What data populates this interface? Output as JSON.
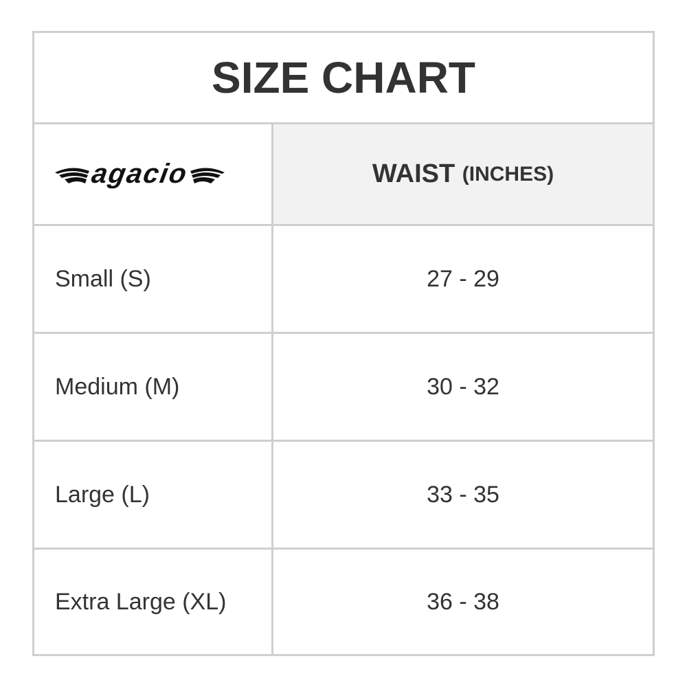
{
  "title": "SIZE CHART",
  "brand_logo": "agacio",
  "header": {
    "waist": "WAIST",
    "unit": "(INCHES)"
  },
  "rows": [
    {
      "size": "Small (S)",
      "waist": "27 - 29"
    },
    {
      "size": "Medium (M)",
      "waist": "30 - 32"
    },
    {
      "size": "Large (L)",
      "waist": "33 - 35"
    },
    {
      "size": "Extra Large (XL)",
      "waist": "36 - 38"
    }
  ]
}
